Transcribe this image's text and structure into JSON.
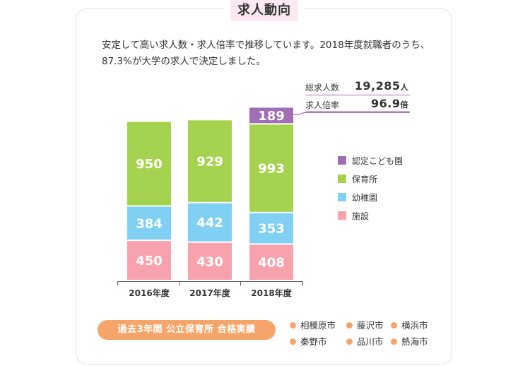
{
  "section_title": "求人動向",
  "description": "安定して高い求人数・求人倍率で推移しています。2018年度就職者のうち、87.3%が大学の求人で決定しました。",
  "stats": [
    {
      "label": "総求人数",
      "value": "19,285",
      "unit": "人"
    },
    {
      "label": "求人倍率",
      "value": "96.9",
      "unit": "倍"
    }
  ],
  "chart_data": {
    "type": "bar",
    "stacked": true,
    "categories": [
      "2016年度",
      "2017年度",
      "2018年度"
    ],
    "series": [
      {
        "name": "施設",
        "values": [
          450,
          430,
          408
        ],
        "color": "#f7a2ad"
      },
      {
        "name": "幼稚園",
        "values": [
          384,
          442,
          353
        ],
        "color": "#7fd0f3"
      },
      {
        "name": "保育所",
        "values": [
          950,
          929,
          993
        ],
        "color": "#a6d34f"
      },
      {
        "name": "認定こども園",
        "values": [
          0,
          0,
          189
        ],
        "color": "#a16eb4"
      }
    ],
    "legend_order": [
      "認定こども園",
      "保育所",
      "幼稚園",
      "施設"
    ],
    "legend_position": "right",
    "grid": false
  },
  "footer": {
    "badge": "過去3年間 公立保育所 合格実績",
    "cities": [
      "相模原市",
      "藤沢市",
      "横浜市",
      "秦野市",
      "品川市",
      "熱海市"
    ]
  }
}
